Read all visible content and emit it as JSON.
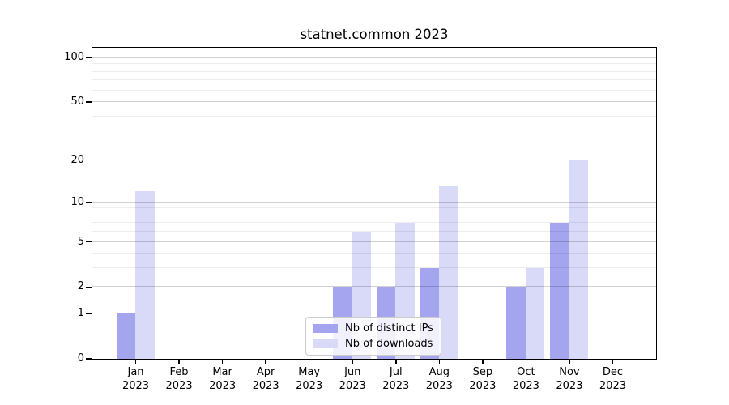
{
  "title": "statnet.common 2023",
  "chart_data": {
    "type": "bar",
    "title": "statnet.common 2023",
    "categories": [
      "Jan",
      "Feb",
      "Mar",
      "Apr",
      "May",
      "Jun",
      "Jul",
      "Aug",
      "Sep",
      "Oct",
      "Nov",
      "Dec"
    ],
    "category_year_line": "2023",
    "series": [
      {
        "name": "Nb of distinct IPs",
        "color": "#a4a4ef",
        "values": [
          1,
          0,
          0,
          0,
          0,
          2,
          2,
          3,
          0,
          2,
          7,
          0
        ]
      },
      {
        "name": "Nb of downloads",
        "color": "#d9d9f8",
        "values": [
          12,
          0,
          0,
          0,
          0,
          6,
          7,
          13,
          0,
          3,
          20,
          0
        ]
      }
    ],
    "y_axis": {
      "scale": "log1p",
      "major_ticks": [
        0,
        1,
        2,
        5,
        10,
        20,
        50,
        100
      ],
      "minor_gridlines": [
        3,
        4,
        6,
        7,
        8,
        9,
        30,
        40,
        60,
        70,
        80,
        90
      ],
      "ylim": [
        0,
        116
      ]
    },
    "x_axis": {
      "tick_labels_line2": "2023"
    },
    "legend": {
      "position": "lower center",
      "entries": [
        "Nb of distinct IPs",
        "Nb of downloads"
      ]
    },
    "grid": true,
    "colors": {
      "bar_distinct_ips": "#a4a4ef",
      "bar_downloads": "#d9d9f8",
      "major_grid": "#d1d1d1",
      "minor_grid": "#ededed",
      "spine": "#000000",
      "background": "#ffffff"
    }
  }
}
